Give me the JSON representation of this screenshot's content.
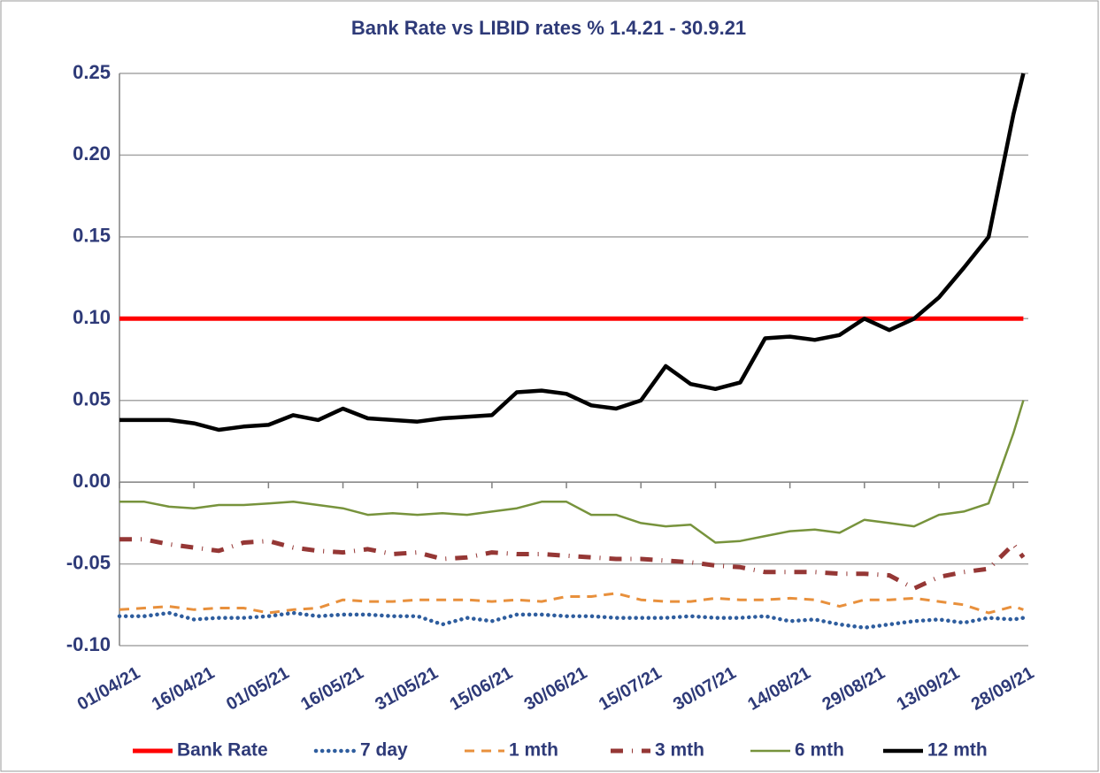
{
  "chart_data": {
    "type": "line",
    "title": "Bank Rate vs LIBID rates % 1.4.21 - 30.9.21",
    "x": [
      "01/04/21",
      "06/04/21",
      "11/04/21",
      "16/04/21",
      "21/04/21",
      "26/04/21",
      "01/05/21",
      "06/05/21",
      "11/05/21",
      "16/05/21",
      "21/05/21",
      "26/05/21",
      "31/05/21",
      "05/06/21",
      "10/06/21",
      "15/06/21",
      "20/06/21",
      "25/06/21",
      "30/06/21",
      "05/07/21",
      "10/07/21",
      "15/07/21",
      "20/07/21",
      "25/07/21",
      "30/07/21",
      "04/08/21",
      "09/08/21",
      "14/08/21",
      "19/08/21",
      "24/08/21",
      "29/08/21",
      "03/09/21",
      "08/09/21",
      "13/09/21",
      "18/09/21",
      "23/09/21",
      "28/09/21",
      "30/09/21"
    ],
    "series": [
      {
        "name": "Bank Rate",
        "color": "#ff0000",
        "style": "solid",
        "values": [
          0.1,
          0.1,
          0.1,
          0.1,
          0.1,
          0.1,
          0.1,
          0.1,
          0.1,
          0.1,
          0.1,
          0.1,
          0.1,
          0.1,
          0.1,
          0.1,
          0.1,
          0.1,
          0.1,
          0.1,
          0.1,
          0.1,
          0.1,
          0.1,
          0.1,
          0.1,
          0.1,
          0.1,
          0.1,
          0.1,
          0.1,
          0.1,
          0.1,
          0.1,
          0.1,
          0.1,
          0.1,
          0.1
        ]
      },
      {
        "name": "7 day",
        "color": "#2e5d9e",
        "style": "dotted",
        "values": [
          -0.082,
          -0.082,
          -0.08,
          -0.084,
          -0.083,
          -0.083,
          -0.082,
          -0.08,
          -0.082,
          -0.081,
          -0.081,
          -0.082,
          -0.082,
          -0.087,
          -0.083,
          -0.085,
          -0.081,
          -0.081,
          -0.082,
          -0.082,
          -0.083,
          -0.083,
          -0.083,
          -0.082,
          -0.083,
          -0.083,
          -0.082,
          -0.085,
          -0.084,
          -0.087,
          -0.089,
          -0.087,
          -0.085,
          -0.084,
          -0.086,
          -0.083,
          -0.084,
          -0.083
        ]
      },
      {
        "name": "1 mth",
        "color": "#e8903c",
        "style": "dashed",
        "values": [
          -0.078,
          -0.077,
          -0.076,
          -0.078,
          -0.077,
          -0.077,
          -0.08,
          -0.078,
          -0.077,
          -0.072,
          -0.073,
          -0.073,
          -0.072,
          -0.072,
          -0.072,
          -0.073,
          -0.072,
          -0.073,
          -0.07,
          -0.07,
          -0.068,
          -0.072,
          -0.073,
          -0.073,
          -0.071,
          -0.072,
          -0.072,
          -0.071,
          -0.072,
          -0.076,
          -0.072,
          -0.072,
          -0.071,
          -0.073,
          -0.075,
          -0.08,
          -0.076,
          -0.078
        ]
      },
      {
        "name": "3 mth",
        "color": "#953735",
        "style": "dashdot",
        "values": [
          -0.035,
          -0.035,
          -0.038,
          -0.04,
          -0.042,
          -0.037,
          -0.036,
          -0.04,
          -0.042,
          -0.043,
          -0.041,
          -0.044,
          -0.043,
          -0.047,
          -0.046,
          -0.043,
          -0.044,
          -0.044,
          -0.045,
          -0.046,
          -0.047,
          -0.047,
          -0.048,
          -0.049,
          -0.051,
          -0.052,
          -0.055,
          -0.055,
          -0.055,
          -0.056,
          -0.056,
          -0.057,
          -0.065,
          -0.058,
          -0.055,
          -0.053,
          -0.038,
          -0.046
        ]
      },
      {
        "name": "6 mth",
        "color": "#77933c",
        "style": "solid",
        "values": [
          -0.012,
          -0.012,
          -0.015,
          -0.016,
          -0.014,
          -0.014,
          -0.013,
          -0.012,
          -0.014,
          -0.016,
          -0.02,
          -0.019,
          -0.02,
          -0.019,
          -0.02,
          -0.018,
          -0.016,
          -0.012,
          -0.012,
          -0.02,
          -0.02,
          -0.025,
          -0.027,
          -0.026,
          -0.037,
          -0.036,
          -0.033,
          -0.03,
          -0.029,
          -0.031,
          -0.023,
          -0.025,
          -0.027,
          -0.02,
          -0.018,
          -0.013,
          0.03,
          0.05
        ]
      },
      {
        "name": "12 mth",
        "color": "#000000",
        "style": "solid",
        "values": [
          0.038,
          0.038,
          0.038,
          0.036,
          0.032,
          0.034,
          0.035,
          0.041,
          0.038,
          0.045,
          0.039,
          0.038,
          0.037,
          0.039,
          0.04,
          0.041,
          0.055,
          0.056,
          0.054,
          0.047,
          0.045,
          0.05,
          0.071,
          0.06,
          0.057,
          0.061,
          0.088,
          0.089,
          0.087,
          0.09,
          0.1,
          0.093,
          0.1,
          0.113,
          0.131,
          0.15,
          0.225,
          0.25
        ]
      }
    ],
    "ylim": [
      -0.1,
      0.25
    ],
    "yticks": [
      {
        "value": -0.1,
        "label": "-0.10"
      },
      -0.05,
      {
        "value": 0,
        "label": "0.00"
      },
      0.05,
      {
        "value": 0.1,
        "label": "0.10"
      },
      0.15,
      {
        "value": 0.2,
        "label": "0.20"
      },
      0.25
    ],
    "xticks": [
      "01/04/21",
      "16/04/21",
      "01/05/21",
      "16/05/21",
      "31/05/21",
      "15/06/21",
      "30/06/21",
      "15/07/21",
      "30/07/21",
      "14/08/21",
      "29/08/21",
      "13/09/21",
      "28/09/21"
    ],
    "grid": true,
    "legend": "bottom"
  }
}
